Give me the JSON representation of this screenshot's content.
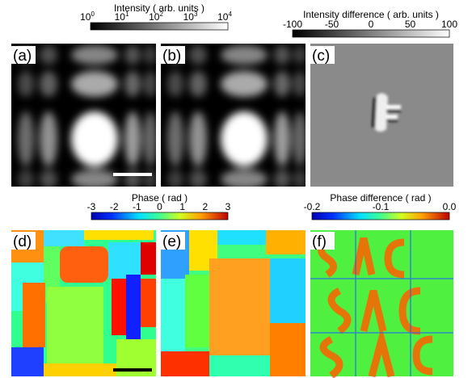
{
  "panels": [
    "(a)",
    "(b)",
    "(c)",
    "(d)",
    "(e)",
    "(f)"
  ],
  "colorbars": [
    {
      "title": "Intensity ( arb. units )",
      "ticks": [
        {
          "base": "10",
          "exp": "0"
        },
        {
          "base": "10",
          "exp": "1"
        },
        {
          "base": "10",
          "exp": "2"
        },
        {
          "base": "10",
          "exp": "3"
        },
        {
          "base": "10",
          "exp": "4"
        }
      ]
    },
    {
      "title": "Intensity difference ( arb. units )",
      "ticks": [
        "-100",
        "-50",
        "0",
        "50",
        "100"
      ]
    },
    {
      "title": "Phase ( rad )",
      "ticks": [
        "-3",
        "-2",
        "-1",
        "0",
        "1",
        "2",
        "3"
      ]
    },
    {
      "title": "Phase difference ( rad )",
      "ticks": [
        "-0.2",
        "-0.1",
        "0.0"
      ]
    }
  ]
}
